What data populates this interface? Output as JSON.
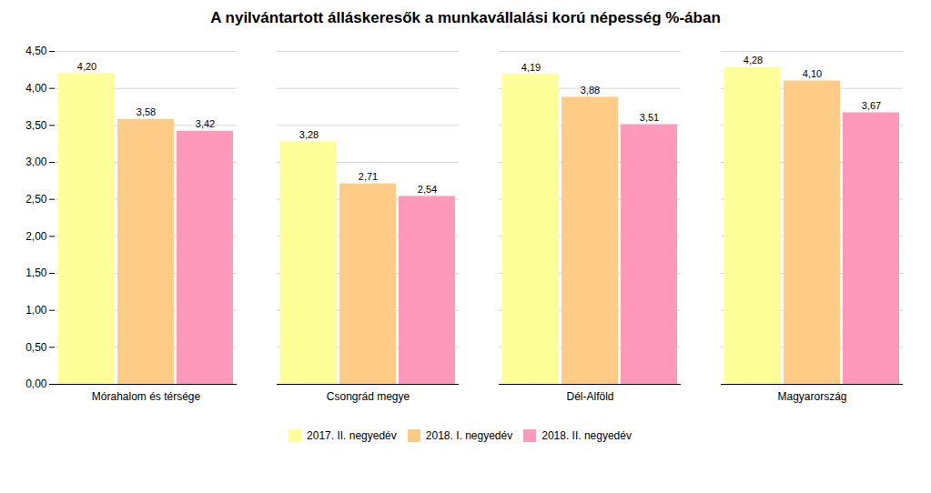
{
  "chart_data": {
    "type": "bar",
    "title": "A nyilvántartott álláskeresők a munkavállalási korú népesség %-ában",
    "categories": [
      "Mórahalom és térsége",
      "Csongrád megye",
      "Dél-Alföld",
      "Magyarország"
    ],
    "series": [
      {
        "name": "2017. II. negyedév",
        "color": "#FFFF99",
        "values": [
          4.2,
          3.28,
          4.19,
          4.28
        ],
        "value_labels": [
          "4,20",
          "3,28",
          "4,19",
          "4,28"
        ]
      },
      {
        "name": "2018. I. negyedév",
        "color": "#FFCC88",
        "values": [
          3.58,
          2.71,
          3.88,
          4.1
        ],
        "value_labels": [
          "3,58",
          "2,71",
          "3,88",
          "4,10"
        ]
      },
      {
        "name": "2018. II. negyedév",
        "color": "#FF99BB",
        "values": [
          3.42,
          2.54,
          3.51,
          3.67
        ],
        "value_labels": [
          "3,42",
          "2,54",
          "3,51",
          "3,67"
        ]
      }
    ],
    "ylim": [
      0,
      4.5
    ],
    "yticks": [
      {
        "value": 0,
        "label": "0,00"
      },
      {
        "value": 0.5,
        "label": "0,50"
      },
      {
        "value": 1,
        "label": "1,00"
      },
      {
        "value": 1.5,
        "label": "1,50"
      },
      {
        "value": 2,
        "label": "2,00"
      },
      {
        "value": 2.5,
        "label": "2,50"
      },
      {
        "value": 3,
        "label": "3,00"
      },
      {
        "value": 3.5,
        "label": "3,50"
      },
      {
        "value": 4,
        "label": "4,00"
      },
      {
        "value": 4.5,
        "label": "4,50"
      }
    ],
    "grid": true,
    "legend": "bottom",
    "data_labels": true
  }
}
